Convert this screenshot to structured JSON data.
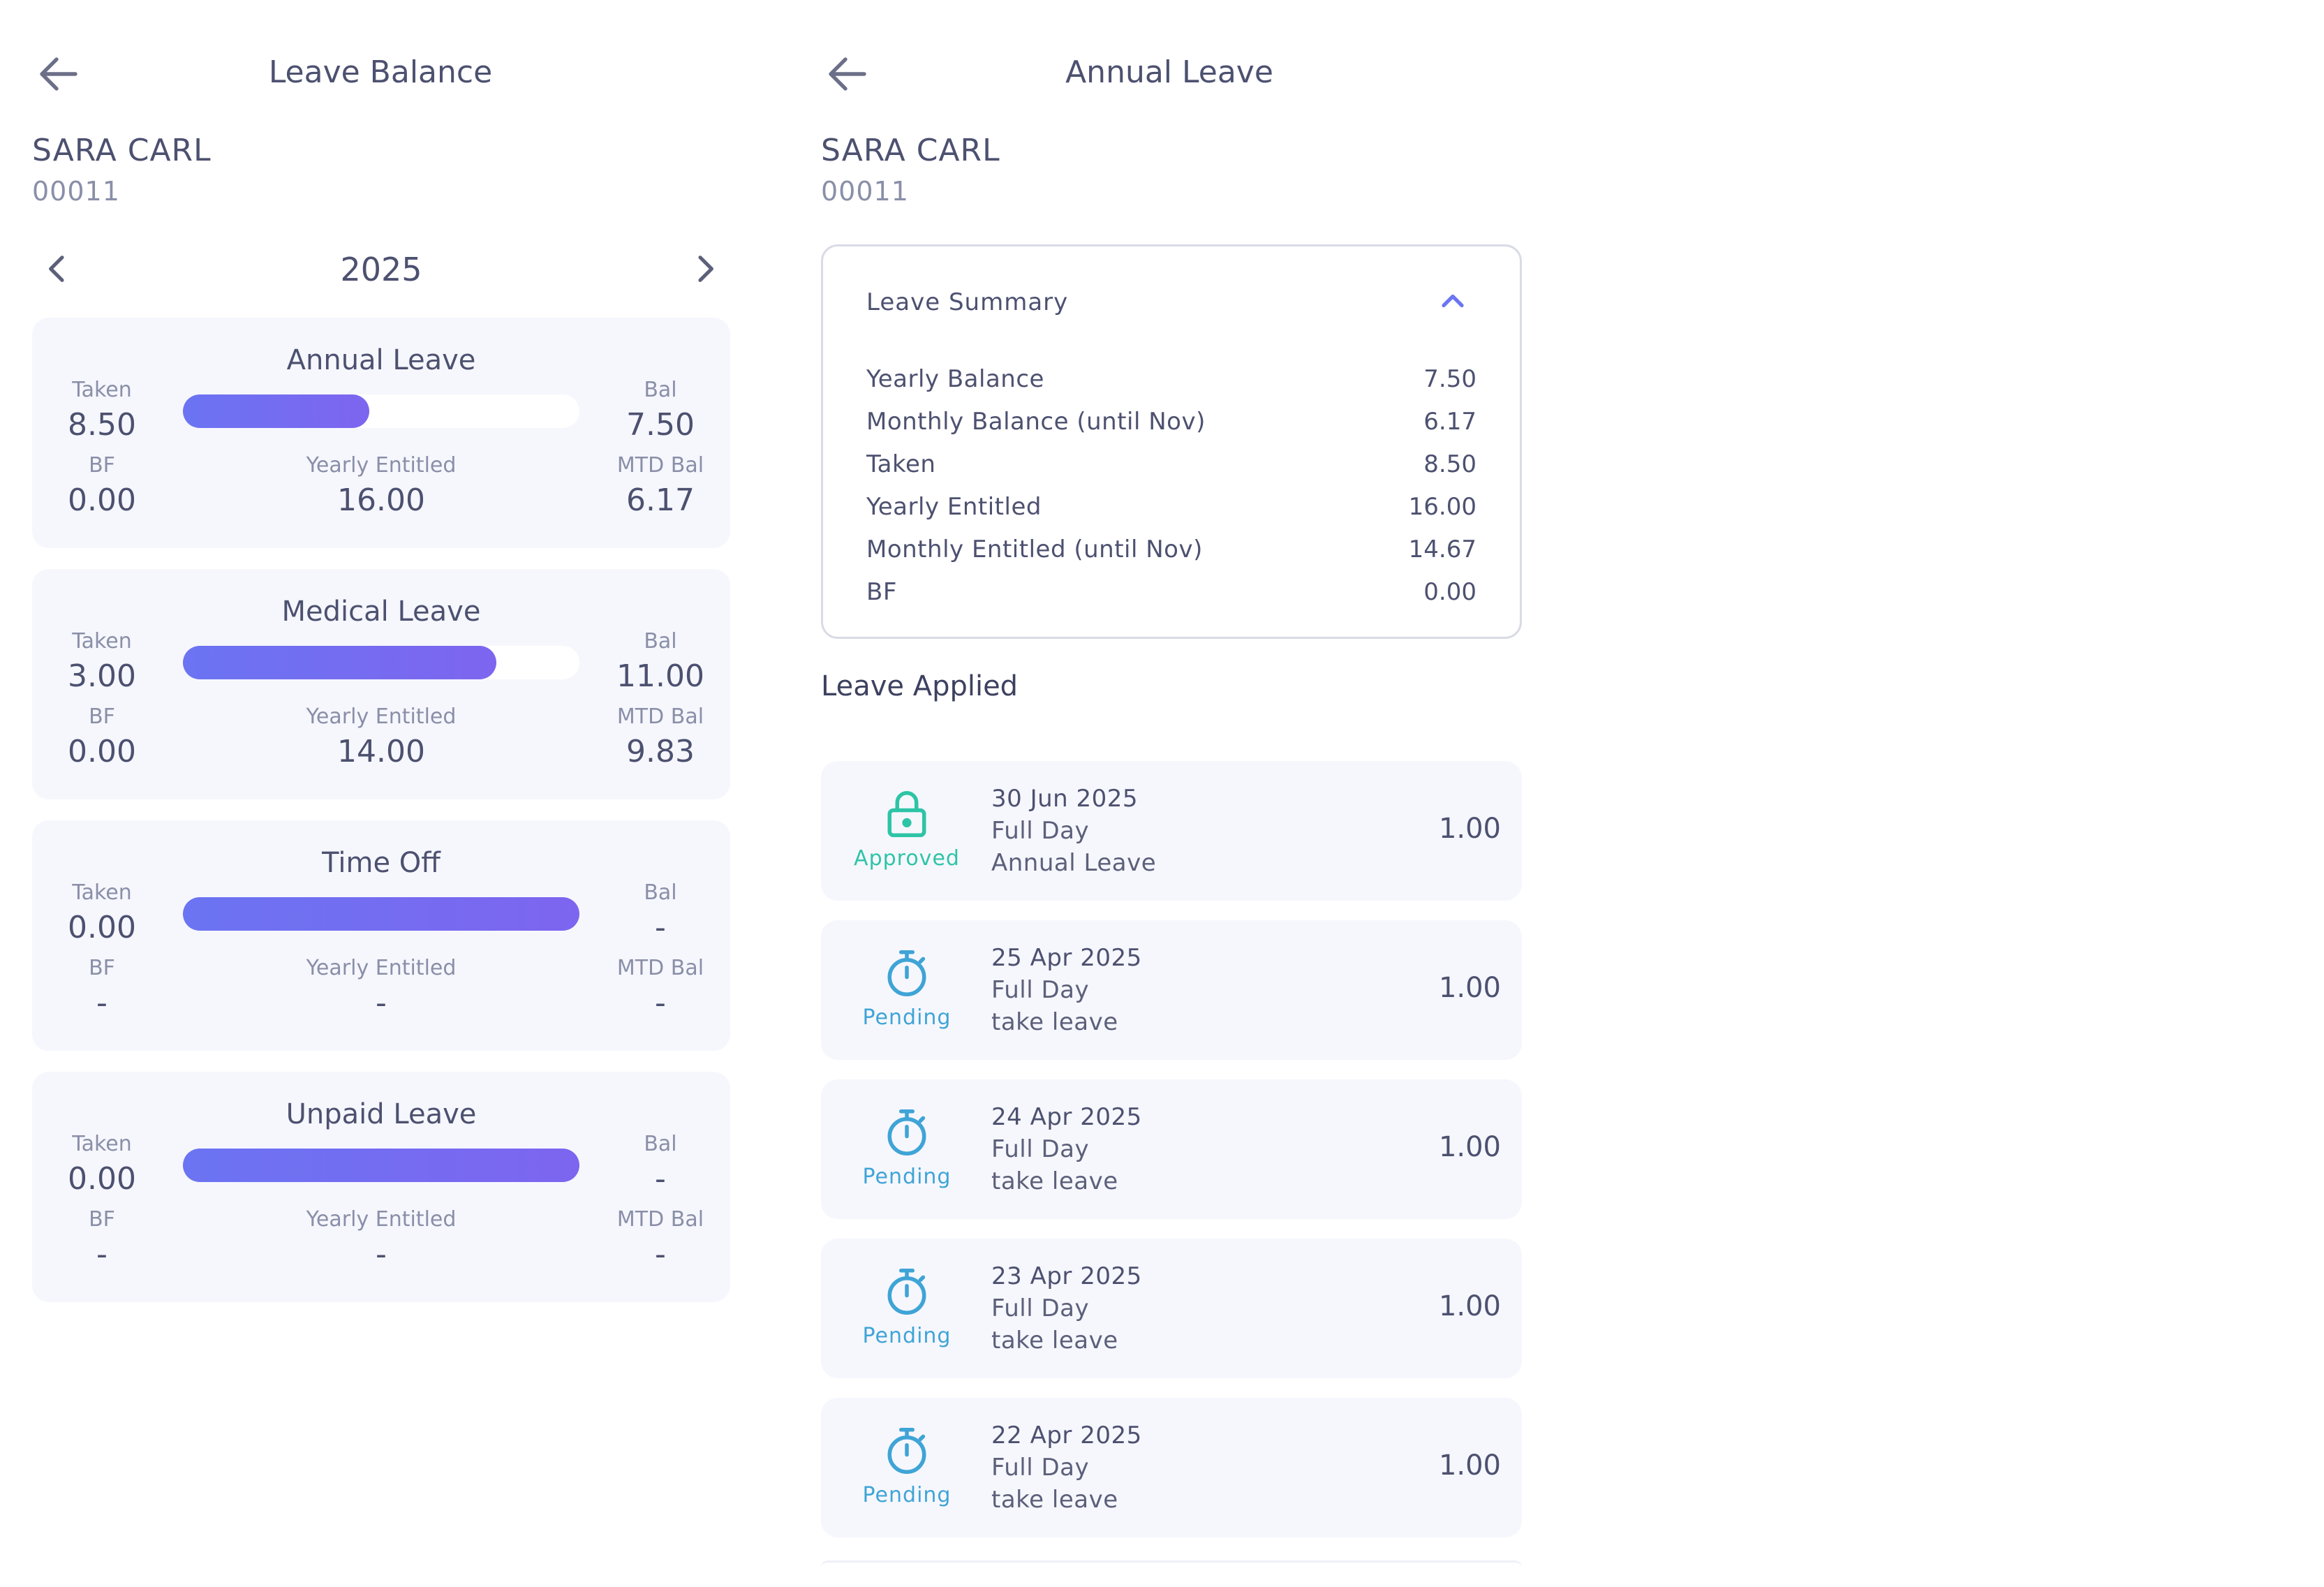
{
  "colors": {
    "accent": "#6b74f2",
    "approved": "#2ec4a6",
    "pending": "#3fa4d6",
    "card_bg": "#f6f7fd"
  },
  "left_screen": {
    "title": "Leave Balance",
    "employee": {
      "name": "SARA CARL",
      "id": "00011"
    },
    "year": "2025",
    "labels": {
      "taken": "Taken",
      "bal": "Bal",
      "bf": "BF",
      "yearly_entitled": "Yearly Entitled",
      "mtd_bal": "MTD Bal"
    },
    "cards": [
      {
        "name": "Annual Leave",
        "taken": "8.50",
        "bal": "7.50",
        "bf": "0.00",
        "yearly_entitled": "16.00",
        "mtd_bal": "6.17",
        "progress": 0.47
      },
      {
        "name": "Medical Leave",
        "taken": "3.00",
        "bal": "11.00",
        "bf": "0.00",
        "yearly_entitled": "14.00",
        "mtd_bal": "9.83",
        "progress": 0.79
      },
      {
        "name": "Time Off",
        "taken": "0.00",
        "bal": "-",
        "bf": "-",
        "yearly_entitled": "-",
        "mtd_bal": "-",
        "progress": 1.0
      },
      {
        "name": "Unpaid Leave",
        "taken": "0.00",
        "bal": "-",
        "bf": "-",
        "yearly_entitled": "-",
        "mtd_bal": "-",
        "progress": 1.0
      }
    ]
  },
  "right_screen": {
    "title": "Annual Leave",
    "employee": {
      "name": "SARA CARL",
      "id": "00011"
    },
    "summary": {
      "title": "Leave Summary",
      "rows": [
        {
          "label": "Yearly Balance",
          "value": "7.50"
        },
        {
          "label": "Monthly Balance (until Nov)",
          "value": "6.17"
        },
        {
          "label": "Taken",
          "value": "8.50"
        },
        {
          "label": "Yearly Entitled",
          "value": "16.00"
        },
        {
          "label": "Monthly Entitled (until Nov)",
          "value": "14.67"
        },
        {
          "label": "BF",
          "value": "0.00"
        }
      ]
    },
    "applied_title": "Leave Applied",
    "applications": [
      {
        "status": "Approved",
        "status_icon": "lock-icon",
        "date": "30 Jun 2025",
        "type": "Full Day",
        "reason": "Annual Leave",
        "days": "1.00"
      },
      {
        "status": "Pending",
        "status_icon": "stopwatch-icon",
        "date": "25 Apr 2025",
        "type": "Full Day",
        "reason": "take leave",
        "days": "1.00"
      },
      {
        "status": "Pending",
        "status_icon": "stopwatch-icon",
        "date": "24 Apr 2025",
        "type": "Full Day",
        "reason": "take leave",
        "days": "1.00"
      },
      {
        "status": "Pending",
        "status_icon": "stopwatch-icon",
        "date": "23 Apr 2025",
        "type": "Full Day",
        "reason": "take leave",
        "days": "1.00"
      },
      {
        "status": "Pending",
        "status_icon": "stopwatch-icon",
        "date": "22 Apr 2025",
        "type": "Full Day",
        "reason": "take leave",
        "days": "1.00"
      }
    ]
  }
}
